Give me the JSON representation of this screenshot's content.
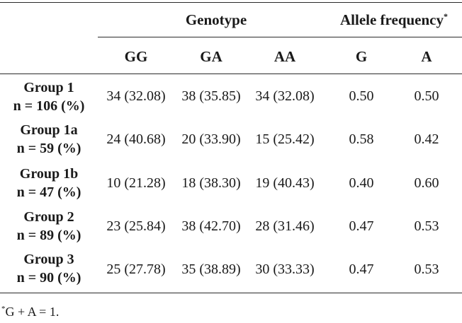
{
  "headers": {
    "genotype": "Genotype",
    "allele_frequency": "Allele frequency",
    "allele_marker": "*",
    "sub": [
      "GG",
      "GA",
      "AA",
      "G",
      "A"
    ]
  },
  "rows": [
    {
      "group": "Group 1",
      "n": "n = 106 (%)",
      "cells": [
        "34 (32.08)",
        "38 (35.85)",
        "34 (32.08)",
        "0.50",
        "0.50"
      ]
    },
    {
      "group": "Group 1a",
      "n": "n = 59 (%)",
      "cells": [
        "24 (40.68)",
        "20 (33.90)",
        "15 (25.42)",
        "0.58",
        "0.42"
      ]
    },
    {
      "group": "Group 1b",
      "n": "n = 47 (%)",
      "cells": [
        "10 (21.28)",
        "18 (38.30)",
        "19 (40.43)",
        "0.40",
        "0.60"
      ]
    },
    {
      "group": "Group 2",
      "n": "n = 89 (%)",
      "cells": [
        "23 (25.84)",
        "38 (42.70)",
        "28 (31.46)",
        "0.47",
        "0.53"
      ]
    },
    {
      "group": "Group 3",
      "n": "n = 90 (%)",
      "cells": [
        "25 (27.78)",
        "35 (38.89)",
        "30 (33.33)",
        "0.47",
        "0.53"
      ]
    }
  ],
  "footnote": {
    "marker": "*",
    "text": "G + A = 1."
  }
}
